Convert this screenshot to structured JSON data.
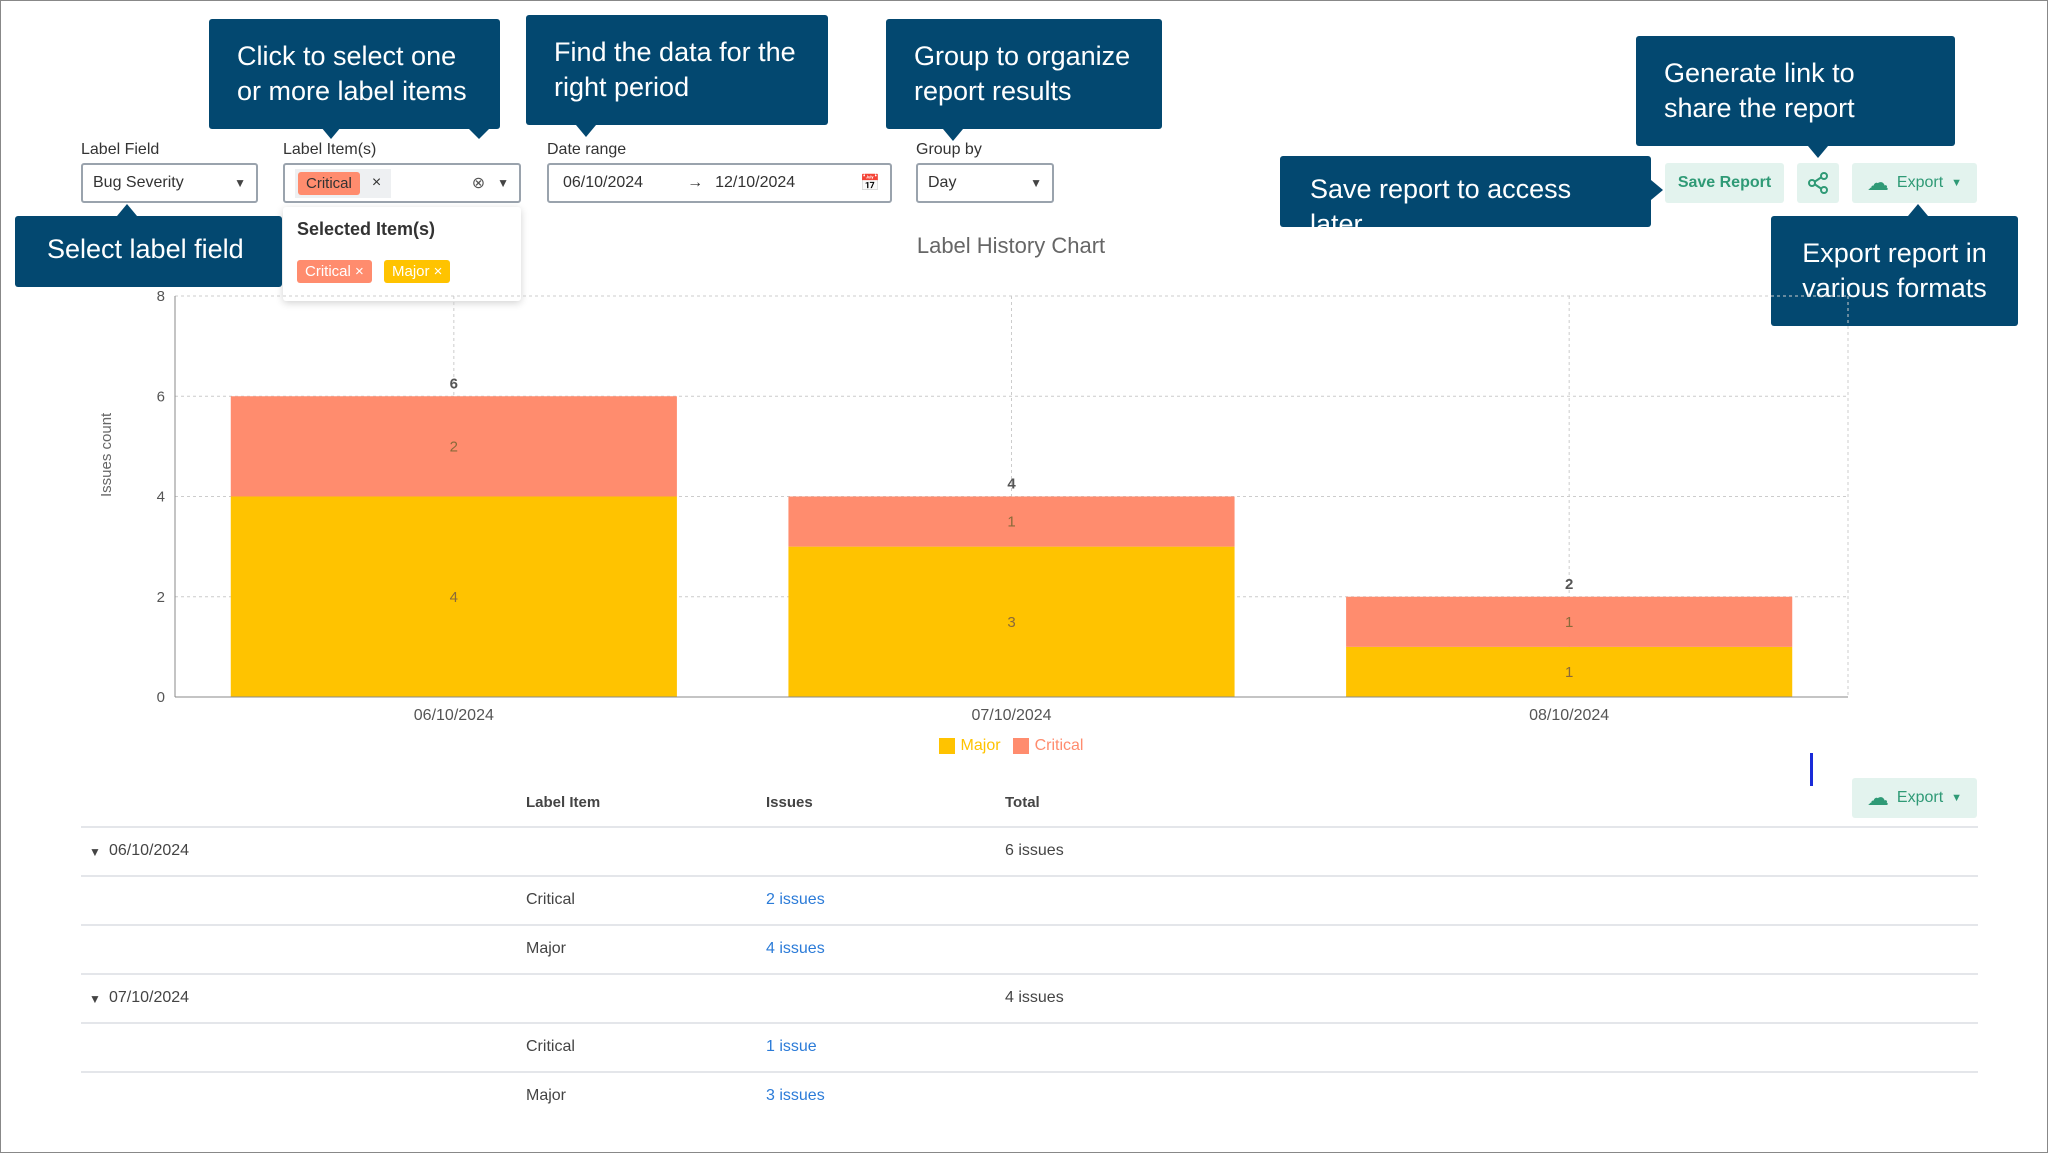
{
  "tooltips": {
    "label_items": "Click to select one or more label items",
    "date_range": "Find the data for the right period",
    "group_by": "Group to organize report results",
    "share": "Generate link to share the report",
    "save": "Save report to access later",
    "export": "Export report in various formats",
    "label_field": "Select label field"
  },
  "filters": {
    "label_field": {
      "label": "Label Field",
      "value": "Bug Severity"
    },
    "label_items": {
      "label": "Label Item(s)",
      "tag": "Critical",
      "remove": "×"
    },
    "date_range": {
      "label": "Date range",
      "start": "06/10/2024",
      "arrow": "→",
      "end": "12/10/2024"
    },
    "group_by": {
      "label": "Group by",
      "value": "Day"
    }
  },
  "dropdown": {
    "title": "Selected Item(s)",
    "items": [
      {
        "label": "Critical ×",
        "color": "#FF8C6E"
      },
      {
        "label": "Major ×",
        "color": "#FFC300"
      }
    ]
  },
  "actions": {
    "save": "Save Report",
    "export": "Export"
  },
  "colors": {
    "major": "#FFC300",
    "critical": "#FF8C6E",
    "tooltip": "#034870",
    "accent": "#2F9A76"
  },
  "chart_data": {
    "type": "bar",
    "stacked": true,
    "title": "Label History Chart",
    "ylabel": "Issues count",
    "ylim": [
      0,
      8
    ],
    "yticks": [
      0,
      2,
      4,
      6,
      8
    ],
    "grid": true,
    "categories": [
      "06/10/2024",
      "07/10/2024",
      "08/10/2024"
    ],
    "series": [
      {
        "name": "Major",
        "values": [
          4,
          3,
          1
        ],
        "color": "#FFC300"
      },
      {
        "name": "Critical",
        "values": [
          2,
          1,
          1
        ],
        "color": "#FF8C6E"
      }
    ],
    "totals": [
      6,
      4,
      2
    ],
    "legend": "bottom"
  },
  "table": {
    "export": "Export",
    "headers": [
      "Label Item",
      "Issues",
      "Total"
    ],
    "rows": [
      {
        "group": "06/10/2024",
        "total": "6 issues"
      },
      {
        "item": "Critical",
        "issues": "2 issues"
      },
      {
        "item": "Major",
        "issues": "4 issues"
      },
      {
        "group": "07/10/2024",
        "total": "4 issues"
      },
      {
        "item": "Critical",
        "issues": "1 issue"
      },
      {
        "item": "Major",
        "issues": "3 issues"
      }
    ]
  }
}
